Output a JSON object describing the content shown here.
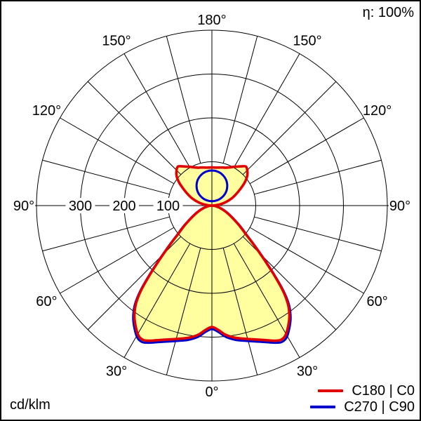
{
  "header": {
    "efficiency_label": "η: 100%"
  },
  "footer": {
    "unit_label": "cd/klm"
  },
  "colors": {
    "background": "#ffffff",
    "frame": "#000000",
    "grid": "#000000",
    "text": "#000000",
    "fill": "#ffffa0",
    "c0_red": "#e10000",
    "c90_blue": "#0000cc"
  },
  "chart_data": {
    "type": "polar",
    "subtype": "photometric-intensity-distribution",
    "unit": "cd/klm",
    "efficiency": "η: 100%",
    "legend_position": "bottom-right",
    "angle_axis": {
      "zero_direction": "down",
      "label_step_deg": 30,
      "spoke_step_deg": 15,
      "labels": [
        "0°",
        "30°",
        "60°",
        "90°",
        "120°",
        "150°",
        "180°"
      ]
    },
    "radial_axis": {
      "max": 400,
      "ring_step": 100,
      "tick_values": [
        300,
        200,
        100
      ],
      "tick_labels": [
        "300",
        "200",
        "100"
      ]
    },
    "series": [
      {
        "name": "C180 | C0",
        "color": "#e10000",
        "fill": "#ffffa0",
        "symmetric": true,
        "points_deg_cd": [
          [
            0,
            277
          ],
          [
            3,
            284
          ],
          [
            6,
            296
          ],
          [
            10,
            306
          ],
          [
            14,
            313
          ],
          [
            18,
            321
          ],
          [
            22,
            331
          ],
          [
            25,
            340
          ],
          [
            27,
            344
          ],
          [
            29,
            342
          ],
          [
            31,
            333
          ],
          [
            34,
            315
          ],
          [
            36,
            300
          ],
          [
            38,
            280
          ],
          [
            40,
            250
          ],
          [
            42,
            210
          ],
          [
            44,
            173
          ],
          [
            46,
            143
          ],
          [
            48,
            119
          ],
          [
            50,
            100
          ],
          [
            52,
            88
          ],
          [
            55,
            72
          ],
          [
            60,
            51
          ],
          [
            65,
            37
          ],
          [
            70,
            26
          ],
          [
            75,
            17
          ],
          [
            80,
            10
          ],
          [
            85,
            4
          ],
          [
            90,
            0
          ],
          [
            95,
            9
          ],
          [
            100,
            22
          ],
          [
            105,
            35
          ],
          [
            110,
            48
          ],
          [
            115,
            60
          ],
          [
            120,
            74
          ],
          [
            125,
            91
          ],
          [
            130,
            105
          ],
          [
            135,
            114
          ],
          [
            139,
            118
          ],
          [
            143,
            112
          ],
          [
            147,
            106
          ],
          [
            151,
            101
          ],
          [
            155,
            96
          ],
          [
            160,
            92
          ],
          [
            165,
            90
          ],
          [
            170,
            88
          ],
          [
            175,
            87
          ],
          [
            180,
            87
          ]
        ]
      },
      {
        "name": "C270 | C90",
        "color": "#0000cc",
        "upper_lobe_circle": {
          "value_at_180": 80,
          "min_value": 10,
          "center_value": 45,
          "radius_value": 35
        },
        "lower_lobe": "same_as_C180_C0"
      }
    ]
  }
}
